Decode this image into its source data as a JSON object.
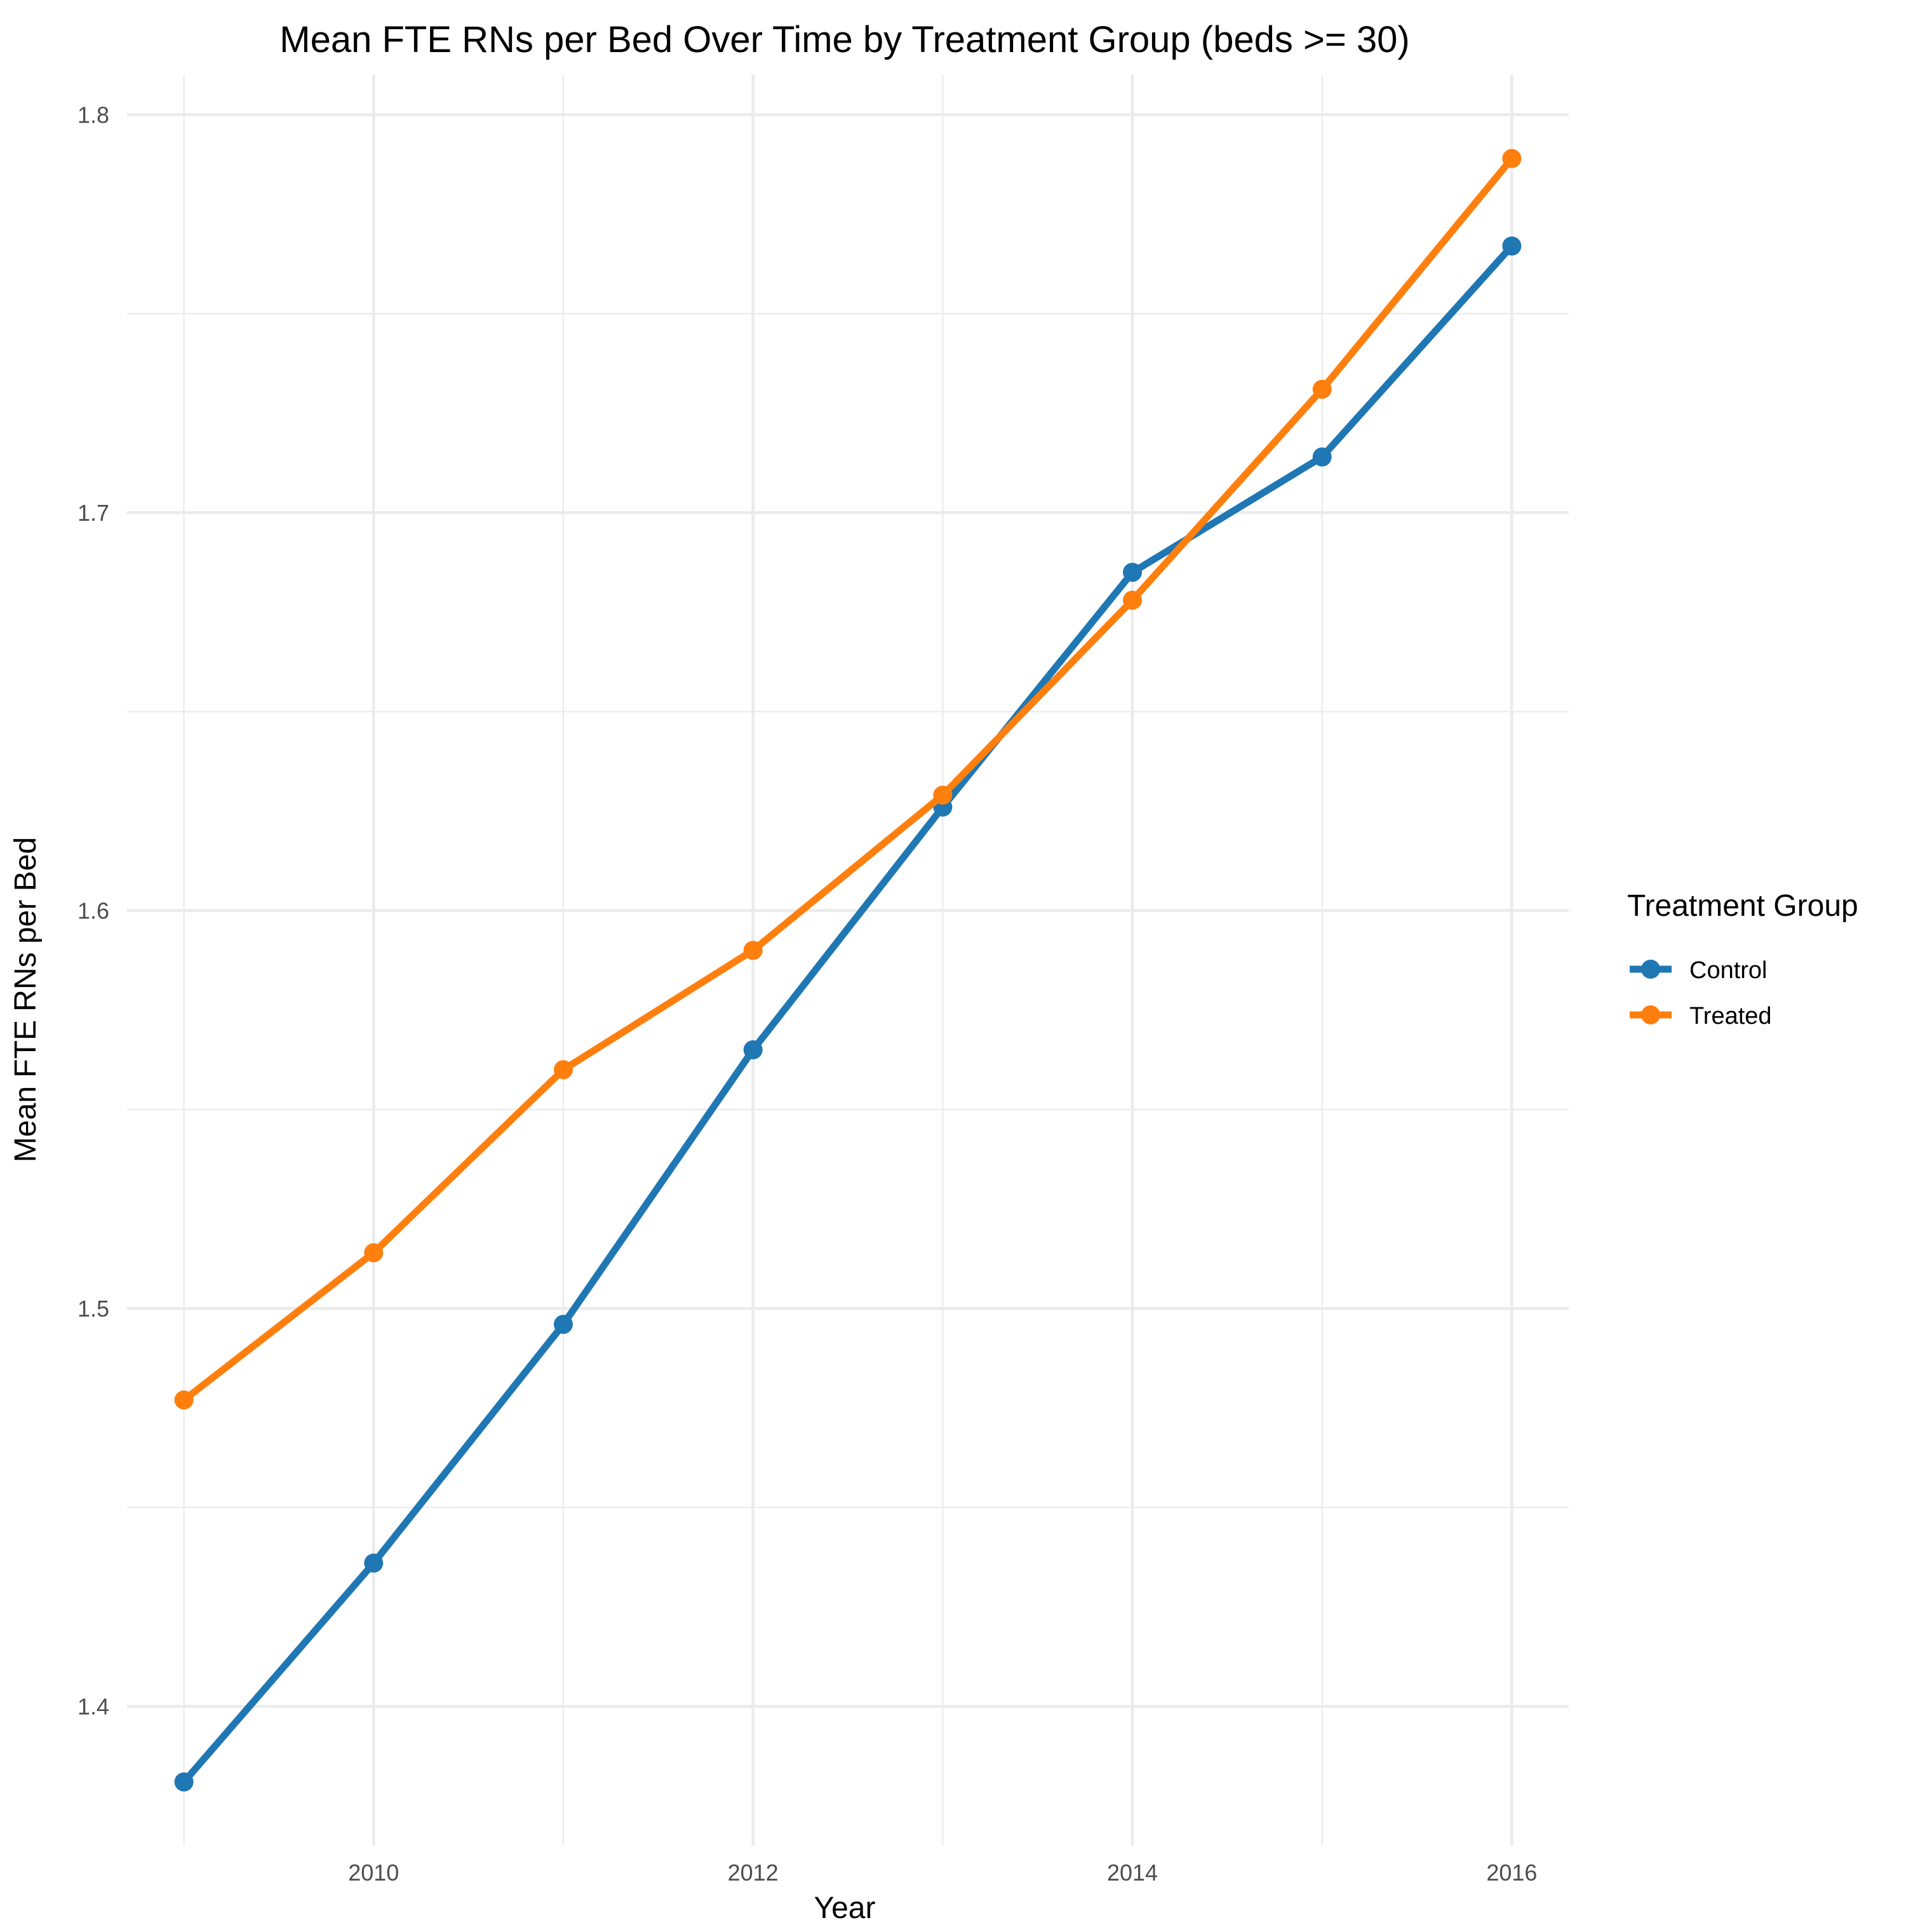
{
  "chart_data": {
    "type": "line",
    "title": "Mean FTE RNs per Bed Over Time by Treatment Group (beds >= 30)",
    "xlabel": "Year",
    "ylabel": "Mean FTE RNs per Bed",
    "x": [
      2009,
      2010,
      2011,
      2012,
      2013,
      2014,
      2015,
      2016
    ],
    "xlim": [
      2008.7,
      2016.3
    ],
    "ylim": [
      1.365,
      1.81
    ],
    "x_ticks": [
      2010,
      2012,
      2014,
      2016
    ],
    "x_tick_labels": [
      "2010",
      "2012",
      "2014",
      "2016"
    ],
    "x_minor_ticks": [
      2009,
      2011,
      2013,
      2015
    ],
    "y_ticks": [
      1.4,
      1.5,
      1.6,
      1.7,
      1.8
    ],
    "y_tick_labels": [
      "1.4",
      "1.5",
      "1.6",
      "1.7",
      "1.8"
    ],
    "y_minor_ticks": [
      1.45,
      1.55,
      1.65,
      1.75
    ],
    "grid": true,
    "legend_title": "Treatment Group",
    "legend_position": "right",
    "series": [
      {
        "name": "Control",
        "color": "#1f77b4",
        "values": [
          1.381,
          1.436,
          1.496,
          1.565,
          1.626,
          1.685,
          1.714,
          1.767
        ]
      },
      {
        "name": "Treated",
        "color": "#ff7f0e",
        "values": [
          1.477,
          1.514,
          1.56,
          1.59,
          1.629,
          1.678,
          1.731,
          1.789
        ]
      }
    ]
  }
}
